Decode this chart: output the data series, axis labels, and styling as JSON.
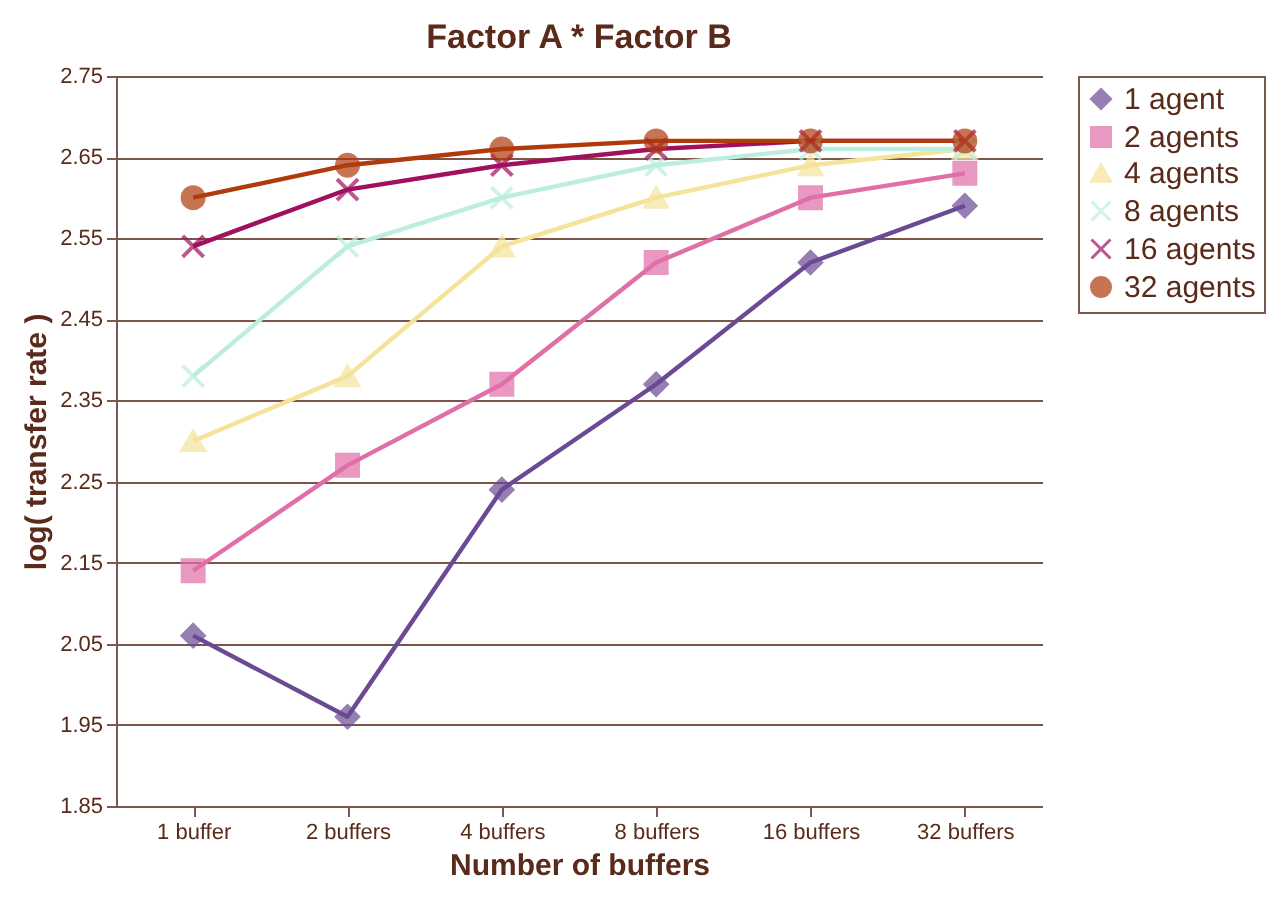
{
  "chart_data": {
    "type": "line",
    "title": "Factor A * Factor B",
    "xlabel": "Number of buffers",
    "ylabel": "log( transfer rate )",
    "categories": [
      "1 buffer",
      "2 buffers",
      "4 buffers",
      "8 buffers",
      "16 buffers",
      "32 buffers"
    ],
    "ylim": [
      1.85,
      2.75
    ],
    "yticks": [
      1.85,
      1.95,
      2.05,
      2.15,
      2.25,
      2.35,
      2.45,
      2.55,
      2.65,
      2.75
    ],
    "grid": "y",
    "legend": "right",
    "series": [
      {
        "name": "1 agent",
        "color": "#6b4a94",
        "marker": "diamond",
        "values": [
          2.06,
          1.96,
          2.24,
          2.37,
          2.52,
          2.59
        ]
      },
      {
        "name": "2 agents",
        "color": "#e06fa8",
        "marker": "square",
        "values": [
          2.14,
          2.27,
          2.37,
          2.52,
          2.6,
          2.63
        ]
      },
      {
        "name": "4 agents",
        "color": "#f5e39a",
        "marker": "triangle",
        "values": [
          2.3,
          2.38,
          2.54,
          2.6,
          2.64,
          2.66
        ]
      },
      {
        "name": "8 agents",
        "color": "#bdeedd",
        "marker": "cross",
        "values": [
          2.38,
          2.54,
          2.6,
          2.64,
          2.66,
          2.66
        ]
      },
      {
        "name": "16 agents",
        "color": "#a0105f",
        "marker": "cross",
        "values": [
          2.54,
          2.61,
          2.64,
          2.66,
          2.67,
          2.67
        ]
      },
      {
        "name": "32 agents",
        "color": "#b03a0c",
        "marker": "circle",
        "values": [
          2.6,
          2.64,
          2.66,
          2.67,
          2.67,
          2.67
        ]
      }
    ]
  }
}
